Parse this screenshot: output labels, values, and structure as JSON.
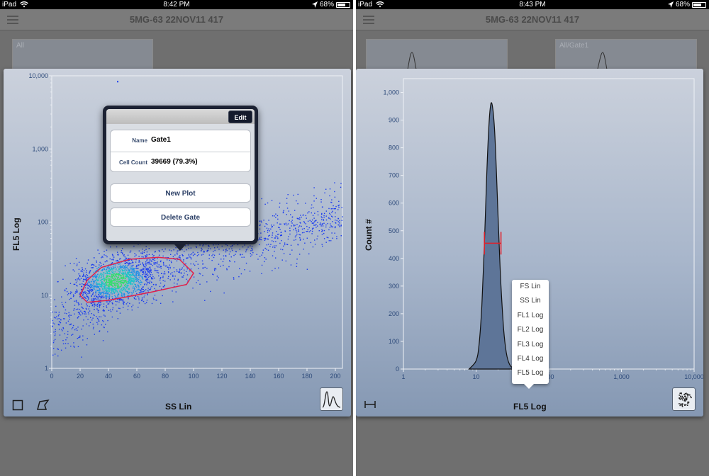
{
  "left": {
    "status": {
      "device": "iPad",
      "time": "8:42 PM",
      "battery": "68%",
      "battery_level": 0.68
    },
    "title": "5MG-63 22NOV11 417",
    "thumbnails": [
      {
        "label": "All"
      }
    ],
    "plot": {
      "xlabel": "SS Lin",
      "ylabel": "FL5 Log",
      "x_ticks": [
        "0",
        "20",
        "40",
        "60",
        "80",
        "100",
        "120",
        "140",
        "160",
        "180",
        "200"
      ],
      "y_ticks": [
        "1",
        "10",
        "100",
        "1,000",
        "10,000"
      ]
    },
    "chart_data": {
      "type": "scatter",
      "xlabel": "SS Lin",
      "ylabel": "FL5 Log",
      "xlim": [
        0,
        205
      ],
      "ylim": [
        1,
        10000
      ],
      "y_scale": "log",
      "gate": {
        "name": "Gate1",
        "polygon": [
          [
            20,
            10
          ],
          [
            25,
            16
          ],
          [
            35,
            24
          ],
          [
            55,
            31
          ],
          [
            75,
            33
          ],
          [
            90,
            31
          ],
          [
            100,
            20
          ],
          [
            95,
            14
          ],
          [
            70,
            11
          ],
          [
            40,
            8.5
          ],
          [
            25,
            8
          ]
        ],
        "color": "#e0204a"
      },
      "density_center": [
        45,
        16
      ]
    },
    "popover": {
      "edit_label": "Edit",
      "name_label": "Name",
      "name_value": "Gate1",
      "count_label": "Cell Count",
      "count_value": "39669 (79.3%)",
      "new_plot_label": "New Plot",
      "delete_gate_label": "Delete Gate"
    }
  },
  "right": {
    "status": {
      "device": "iPad",
      "time": "8:43 PM",
      "battery": "68%",
      "battery_level": 0.68
    },
    "title": "5MG-63 22NOV11 417",
    "thumbnails": [
      {
        "label": ""
      },
      {
        "label": "All/Gate1"
      }
    ],
    "plot": {
      "xlabel": "FL5 Log",
      "ylabel": "Count #",
      "x_ticks": [
        "1",
        "10",
        "100",
        "1,000",
        "10,000"
      ],
      "y_ticks": [
        "0",
        "100",
        "200",
        "300",
        "400",
        "500",
        "600",
        "700",
        "800",
        "900",
        "1,000"
      ]
    },
    "chart_data": {
      "type": "area",
      "xlabel": "FL5 Log",
      "ylabel": "Count #",
      "x_scale": "log",
      "xlim": [
        1,
        10000
      ],
      "ylim": [
        0,
        1050
      ],
      "x": [
        8,
        10,
        11,
        12,
        13,
        14,
        15,
        16,
        17,
        18,
        19,
        20,
        21,
        22,
        24,
        26,
        28,
        30,
        33,
        36
      ],
      "y": [
        0,
        30,
        90,
        230,
        450,
        700,
        880,
        960,
        940,
        860,
        720,
        560,
        420,
        300,
        140,
        60,
        25,
        10,
        3,
        0
      ],
      "marker": {
        "type": "range",
        "x_from": 13,
        "x_to": 22,
        "y": 455,
        "color": "#e0202a"
      }
    },
    "param_menu": [
      "FS Lin",
      "SS Lin",
      "FL1 Log",
      "FL2 Log",
      "FL3 Log",
      "FL4 Log",
      "FL5 Log"
    ]
  }
}
